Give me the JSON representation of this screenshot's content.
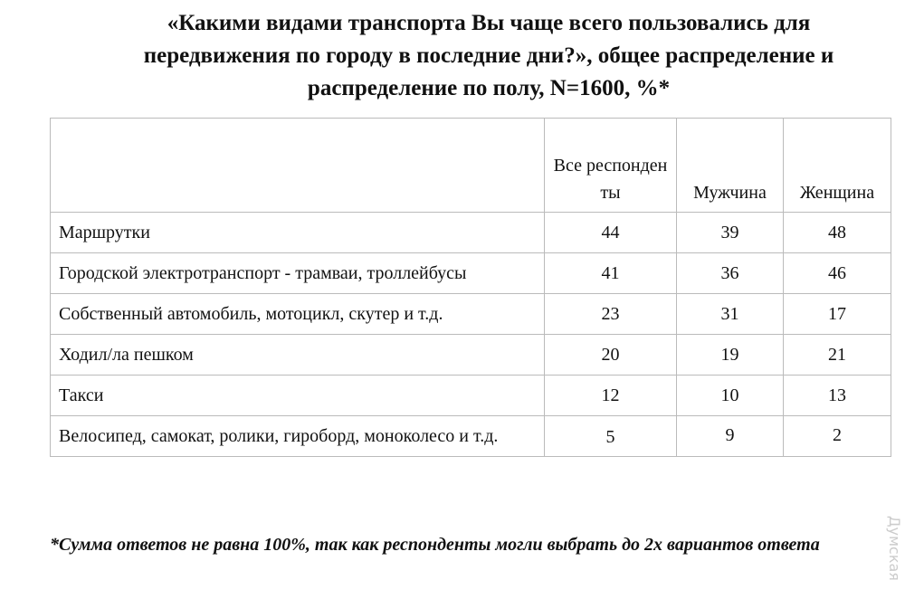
{
  "header": {
    "title_lines": [
      "«Какими видами транспорта Вы чаще всего пользовались для",
      "передвижения по городу в последние дни?», общее распределение и",
      "распределение по полу, N=1600, %*"
    ]
  },
  "table": {
    "columns": [
      "",
      "Все респонденты",
      "Мужчина",
      "Женщина"
    ],
    "rows": [
      [
        "Маршрутки",
        "44",
        "39",
        "48"
      ],
      [
        "Городской электротранспорт - трамваи, троллейбусы",
        "41",
        "36",
        "46"
      ],
      [
        "Собственный автомобиль, мотоцикл, скутер и т.д.",
        "23",
        "31",
        "17"
      ],
      [
        "Ходил/ла пешком",
        "20",
        "19",
        "21"
      ],
      [
        "Такси",
        "12",
        "10",
        "13"
      ],
      [
        "Велосипед, самокат, ролики, гироборд, моноколесо и т.д.",
        "5",
        "9",
        "2"
      ]
    ]
  },
  "footnote": "*Сумма ответов не равна 100%, так как респонденты могли выбрать до 2х вариантов ответа",
  "watermark": "Думская"
}
